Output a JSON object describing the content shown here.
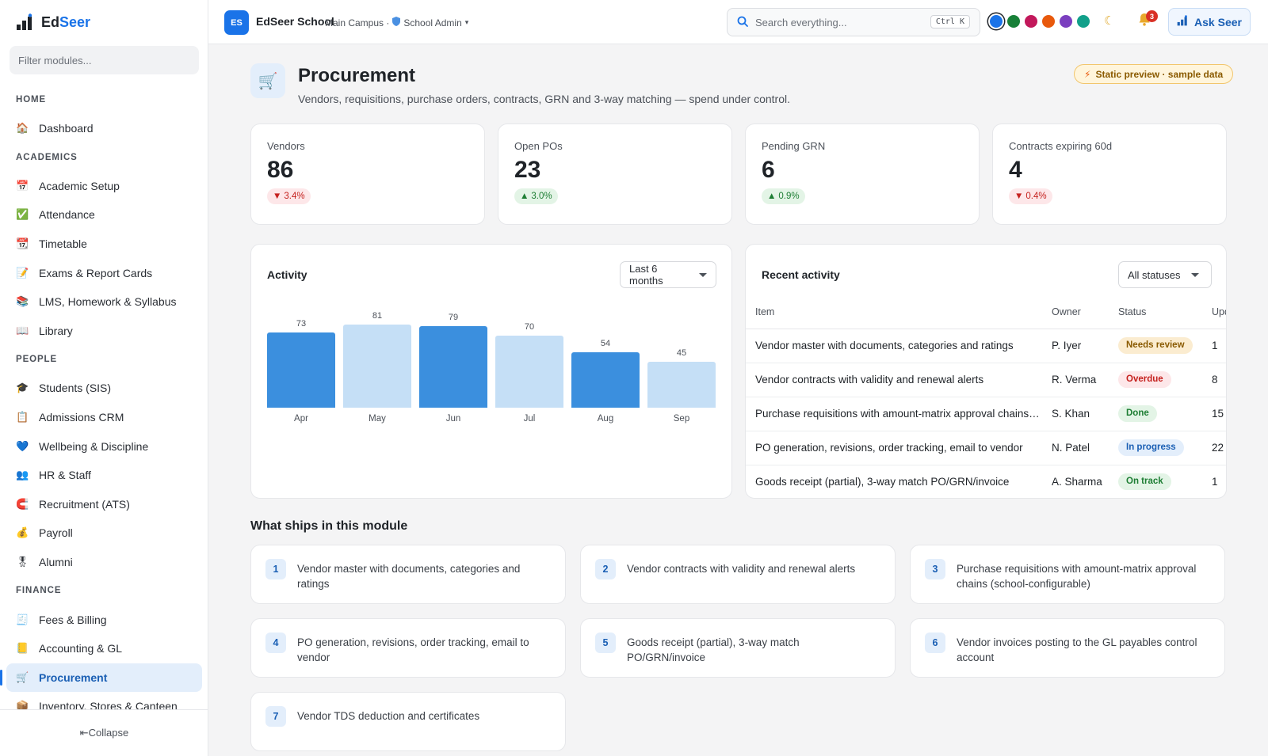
{
  "brand": {
    "name_part1": "Ed",
    "name_part2": "Seer"
  },
  "sidebar": {
    "filter_placeholder": "Filter modules...",
    "sections": [
      {
        "title": "HOME",
        "items": [
          {
            "label": "Dashboard",
            "icon": "house-icon",
            "glyph": "🏠"
          }
        ]
      },
      {
        "title": "ACADEMICS",
        "items": [
          {
            "label": "Academic Setup",
            "icon": "calendar-icon",
            "glyph": "📅"
          },
          {
            "label": "Attendance",
            "icon": "checkbox-icon",
            "glyph": "✅"
          },
          {
            "label": "Timetable",
            "icon": "calendar-grid-icon",
            "glyph": "📆"
          },
          {
            "label": "Exams & Report Cards",
            "icon": "report-icon",
            "glyph": "📝"
          },
          {
            "label": "LMS, Homework & Syllabus",
            "icon": "books-icon",
            "glyph": "📚"
          },
          {
            "label": "Library",
            "icon": "open-book-icon",
            "glyph": "📖"
          }
        ]
      },
      {
        "title": "PEOPLE",
        "items": [
          {
            "label": "Students (SIS)",
            "icon": "graduation-cap-icon",
            "glyph": "🎓"
          },
          {
            "label": "Admissions CRM",
            "icon": "clipboard-icon",
            "glyph": "📋"
          },
          {
            "label": "Wellbeing & Discipline",
            "icon": "heart-icon",
            "glyph": "💙"
          },
          {
            "label": "HR & Staff",
            "icon": "people-icon",
            "glyph": "👥"
          },
          {
            "label": "Recruitment (ATS)",
            "icon": "magnet-icon",
            "glyph": "🧲"
          },
          {
            "label": "Payroll",
            "icon": "money-bag-icon",
            "glyph": "💰"
          },
          {
            "label": "Alumni",
            "icon": "medal-icon",
            "glyph": "🎖"
          }
        ]
      },
      {
        "title": "FINANCE",
        "items": [
          {
            "label": "Fees & Billing",
            "icon": "receipt-icon",
            "glyph": "🧾"
          },
          {
            "label": "Accounting & GL",
            "icon": "ledger-icon",
            "glyph": "📒"
          },
          {
            "label": "Procurement",
            "icon": "cart-icon",
            "glyph": "🛒",
            "active": true
          },
          {
            "label": "Inventory, Stores & Canteen",
            "icon": "package-icon",
            "glyph": "📦"
          }
        ]
      }
    ],
    "collapse_label": "⇤Collapse"
  },
  "topbar": {
    "school_initials": "ES",
    "school_name": "EdSeer School",
    "campus": "Main Campus ·",
    "role": "School Admin",
    "role_caret": "▾",
    "search_placeholder": "Search everything...",
    "search_shortcut": "Ctrl K",
    "theme_colors": [
      "#1a73e8",
      "#188038",
      "#c2185b",
      "#e8590c",
      "#7b3fbf",
      "#12a08a"
    ],
    "notification_count": "3",
    "ask_label": "Ask Seer"
  },
  "page": {
    "icon": "cart-icon",
    "title": "Procurement",
    "subtitle": "Vendors, requisitions, purchase orders, contracts, GRN and 3-way matching — spend under control.",
    "preview_badge": "Static preview · sample data"
  },
  "kpis": [
    {
      "label": "Vendors",
      "value": "86",
      "delta": "3.4%",
      "direction": "down"
    },
    {
      "label": "Open POs",
      "value": "23",
      "delta": "3.0%",
      "direction": "up"
    },
    {
      "label": "Pending GRN",
      "value": "6",
      "delta": "0.9%",
      "direction": "up"
    },
    {
      "label": "Contracts expiring 60d",
      "value": "4",
      "delta": "0.4%",
      "direction": "down"
    }
  ],
  "activity": {
    "title": "Activity",
    "range": "Last 6 months"
  },
  "chart_data": {
    "type": "bar",
    "categories": [
      "Apr",
      "May",
      "Jun",
      "Jul",
      "Aug",
      "Sep"
    ],
    "values": [
      73,
      81,
      79,
      70,
      54,
      45
    ],
    "colors": [
      "#3b8fde",
      "#c5dff6",
      "#3b8fde",
      "#c5dff6",
      "#3b8fde",
      "#c5dff6"
    ],
    "title": "",
    "ylim": [
      0,
      100
    ]
  },
  "recent": {
    "title": "Recent activity",
    "filter": "All statuses",
    "columns": [
      "Item",
      "Owner",
      "Status",
      "Upd"
    ],
    "rows": [
      {
        "item": "Vendor master with documents, categories and ratings",
        "owner": "P. Iyer",
        "status": "Needs review",
        "upd": "1",
        "status_bg": "#fbecd0",
        "status_fg": "#8a5a00"
      },
      {
        "item": "Vendor contracts with validity and renewal alerts",
        "owner": "R. Verma",
        "status": "Overdue",
        "upd": "8",
        "status_bg": "#fde7e9",
        "status_fg": "#c5221f"
      },
      {
        "item": "Purchase requisitions with amount-matrix approval chains (school-configurable)",
        "owner": "S. Khan",
        "status": "Done",
        "upd": "15",
        "status_bg": "#e3f4e6",
        "status_fg": "#1e7e34"
      },
      {
        "item": "PO generation, revisions, order tracking, email to vendor",
        "owner": "N. Patel",
        "status": "In progress",
        "upd": "22",
        "status_bg": "#e3eefb",
        "status_fg": "#1a5fb4"
      },
      {
        "item": "Goods receipt (partial), 3-way match PO/GRN/invoice",
        "owner": "A. Sharma",
        "status": "On track",
        "upd": "1",
        "status_bg": "#e3f4e6",
        "status_fg": "#1e7e34"
      }
    ]
  },
  "ships": {
    "title": "What ships in this module",
    "items": [
      {
        "num": "1",
        "text": "Vendor master with documents, categories and ratings"
      },
      {
        "num": "2",
        "text": "Vendor contracts with validity and renewal alerts"
      },
      {
        "num": "3",
        "text": "Purchase requisitions with amount-matrix approval chains (school-configurable)"
      },
      {
        "num": "4",
        "text": "PO generation, revisions, order tracking, email to vendor"
      },
      {
        "num": "5",
        "text": "Goods receipt (partial), 3-way match PO/GRN/invoice"
      },
      {
        "num": "6",
        "text": "Vendor invoices posting to the GL payables control account"
      },
      {
        "num": "7",
        "text": "Vendor TDS deduction and certificates"
      }
    ]
  }
}
